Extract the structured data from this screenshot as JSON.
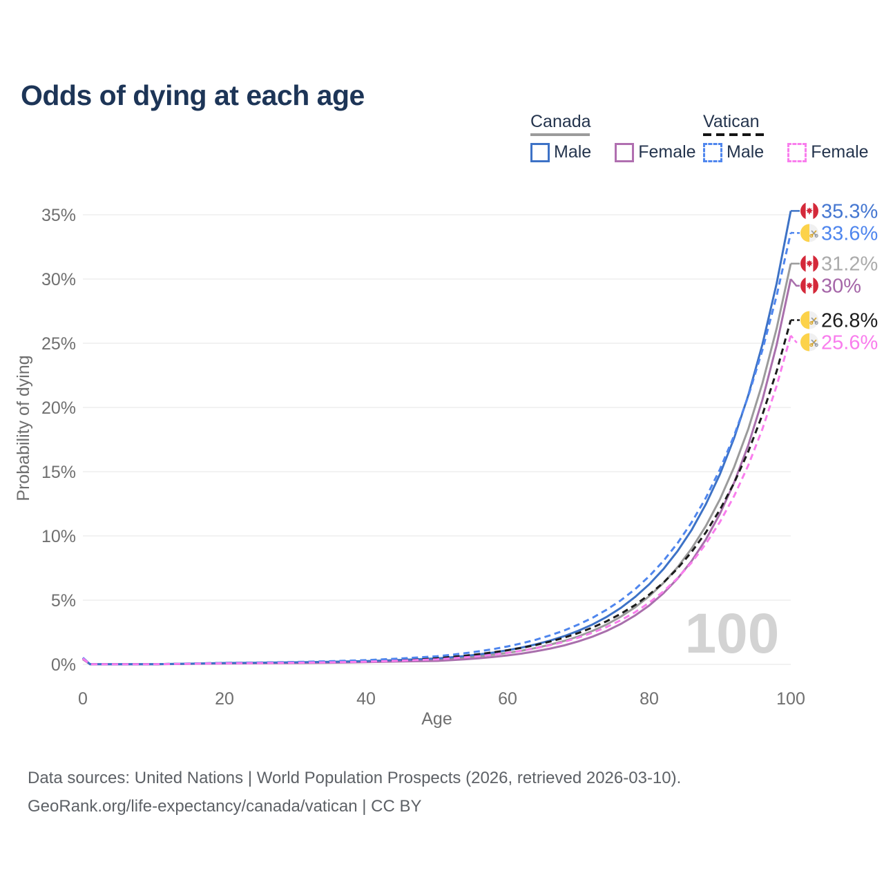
{
  "title": "Odds of dying at each age",
  "legend": {
    "groups": [
      {
        "name": "Canada",
        "line_style": "solid",
        "underline_color": "#9b9b9b",
        "items": [
          {
            "label": "Male",
            "color": "#3d72c6",
            "dashed": false
          },
          {
            "label": "Female",
            "color": "#b06fb0",
            "dashed": false
          }
        ]
      },
      {
        "name": "Vatican",
        "line_style": "dashed",
        "underline_color": "#141414",
        "items": [
          {
            "label": "Male",
            "color": "#4f86ee",
            "dashed": true
          },
          {
            "label": "Female",
            "color": "#f97ded",
            "dashed": true
          }
        ]
      }
    ]
  },
  "chart_data": {
    "type": "line",
    "title": "Odds of dying at each age",
    "xlabel": "Age",
    "ylabel": "Probability of dying",
    "xlim": [
      0,
      100
    ],
    "ylim": [
      0,
      35
    ],
    "x_ticks": [
      0,
      20,
      40,
      60,
      80,
      100
    ],
    "y_ticks": [
      0,
      5,
      10,
      15,
      20,
      25,
      30,
      35
    ],
    "y_tick_suffix": "%",
    "grid": "horizontal",
    "watermark": "100",
    "legend_position": "top-right",
    "x": [
      0,
      1,
      5,
      10,
      15,
      20,
      25,
      30,
      35,
      40,
      45,
      50,
      52,
      54,
      56,
      58,
      60,
      62,
      64,
      66,
      68,
      70,
      72,
      74,
      76,
      78,
      80,
      82,
      84,
      86,
      88,
      90,
      92,
      94,
      96,
      98,
      100
    ],
    "series": [
      {
        "name": "Canada",
        "flag": "canada",
        "color": "#9b9b9b",
        "label_color": "#ababab",
        "dashed": false,
        "end_label": "31.2%",
        "values": [
          0.44,
          0.018,
          0.009,
          0.011,
          0.05,
          0.09,
          0.11,
          0.13,
          0.17,
          0.22,
          0.3,
          0.37,
          0.44,
          0.53,
          0.63,
          0.75,
          0.9,
          1.07,
          1.28,
          1.53,
          1.83,
          2.18,
          2.61,
          3.11,
          3.72,
          4.44,
          5.3,
          6.33,
          7.56,
          9.02,
          10.77,
          12.86,
          15.36,
          18.33,
          21.89,
          26.14,
          31.2
        ]
      },
      {
        "name": "Canada Female",
        "flag": "canada",
        "color": "#a96fac",
        "label_color": "#a566a8",
        "dashed": false,
        "end_label": "30%",
        "values": [
          0.4,
          0.015,
          0.008,
          0.01,
          0.04,
          0.07,
          0.085,
          0.1,
          0.13,
          0.17,
          0.23,
          0.27,
          0.33,
          0.4,
          0.48,
          0.58,
          0.7,
          0.84,
          1.02,
          1.23,
          1.48,
          1.79,
          2.16,
          2.61,
          3.15,
          3.8,
          4.58,
          5.53,
          6.67,
          8.05,
          9.72,
          11.73,
          14.15,
          17.07,
          20.6,
          24.86,
          30.0
        ]
      },
      {
        "name": "Canada Male",
        "flag": "canada",
        "color": "#3d72c6",
        "label_color": "#4577d1",
        "dashed": false,
        "end_label": "35.3%",
        "values": [
          0.48,
          0.02,
          0.01,
          0.012,
          0.055,
          0.11,
          0.13,
          0.16,
          0.2,
          0.26,
          0.35,
          0.46,
          0.55,
          0.65,
          0.78,
          0.92,
          1.1,
          1.31,
          1.56,
          1.85,
          2.2,
          2.62,
          3.11,
          3.7,
          4.4,
          5.24,
          6.23,
          7.41,
          8.81,
          10.47,
          12.46,
          14.81,
          17.62,
          20.95,
          24.92,
          29.64,
          35.3
        ]
      },
      {
        "name": "Vatican",
        "flag": "vatican",
        "color": "#1c1c1c",
        "label_color": "#1c1c1c",
        "dashed": true,
        "end_label": "26.8%",
        "values": [
          0.5,
          0.021,
          0.01,
          0.013,
          0.06,
          0.105,
          0.13,
          0.16,
          0.2,
          0.27,
          0.37,
          0.5,
          0.58,
          0.68,
          0.8,
          0.94,
          1.1,
          1.29,
          1.51,
          1.78,
          2.08,
          2.44,
          2.87,
          3.36,
          3.94,
          4.62,
          5.43,
          6.36,
          7.46,
          8.76,
          10.27,
          12.05,
          14.13,
          16.57,
          19.44,
          22.81,
          26.8
        ]
      },
      {
        "name": "Vatican Male",
        "flag": "vatican",
        "color": "#4f86ee",
        "label_color": "#4f86ee",
        "dashed": true,
        "end_label": "33.6%",
        "values": [
          0.52,
          0.024,
          0.012,
          0.014,
          0.065,
          0.12,
          0.15,
          0.19,
          0.25,
          0.33,
          0.46,
          0.63,
          0.74,
          0.87,
          1.02,
          1.19,
          1.4,
          1.64,
          1.92,
          2.26,
          2.64,
          3.1,
          3.63,
          4.26,
          4.99,
          5.85,
          6.86,
          8.05,
          9.43,
          11.06,
          12.96,
          15.19,
          17.81,
          20.88,
          24.48,
          28.69,
          33.6
        ]
      },
      {
        "name": "Vatican Female",
        "flag": "vatican",
        "color": "#f97ded",
        "label_color": "#f97ded",
        "dashed": true,
        "end_label": "25.6%",
        "values": [
          0.46,
          0.018,
          0.009,
          0.011,
          0.05,
          0.085,
          0.1,
          0.125,
          0.16,
          0.21,
          0.29,
          0.39,
          0.46,
          0.55,
          0.64,
          0.76,
          0.9,
          1.06,
          1.26,
          1.49,
          1.76,
          2.08,
          2.46,
          2.91,
          3.44,
          4.06,
          4.8,
          5.68,
          6.71,
          7.93,
          9.38,
          11.09,
          13.11,
          15.5,
          18.33,
          21.67,
          25.61
        ]
      }
    ]
  },
  "flags": {
    "canada_red": "#d4293a",
    "vatican_gold": "#fcd24a",
    "vatican_key_gold": "#d7a62c",
    "vatican_key_gray": "#949aa3"
  },
  "footer": {
    "line1": "Data sources: United Nations | World Population Prospects (2026, retrieved 2026-03-10).",
    "line2": "GeoRank.org/life-expectancy/canada/vatican | CC BY"
  }
}
